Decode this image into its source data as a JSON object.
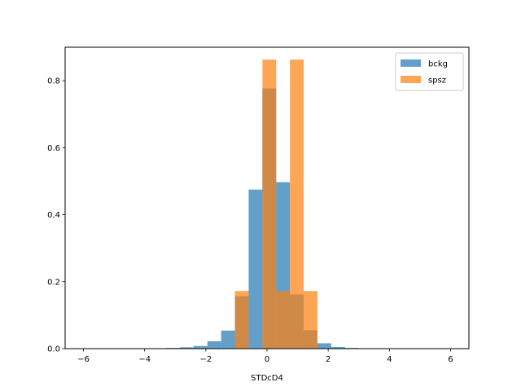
{
  "chart_data": {
    "type": "histogram",
    "title": "",
    "xlabel": "STDcD4",
    "ylabel": "",
    "xlim": [
      -6.6,
      6.6
    ],
    "ylim": [
      0,
      0.9
    ],
    "xticks": [
      -6,
      -4,
      -2,
      0,
      2,
      4,
      6
    ],
    "yticks": [
      0.0,
      0.2,
      0.4,
      0.6,
      0.8
    ],
    "grid": false,
    "legend_position": "top-right",
    "bins": [
      [
        -3.3,
        -2.85
      ],
      [
        -2.85,
        -2.4
      ],
      [
        -2.4,
        -1.95
      ],
      [
        -1.95,
        -1.5
      ],
      [
        -1.5,
        -1.05
      ],
      [
        -1.05,
        -0.6
      ],
      [
        -0.6,
        -0.15
      ],
      [
        -0.15,
        0.3
      ],
      [
        0.3,
        0.75
      ],
      [
        0.75,
        1.2
      ],
      [
        1.2,
        1.65
      ],
      [
        1.65,
        2.1
      ],
      [
        2.1,
        2.55
      ],
      [
        2.55,
        3.0
      ]
    ],
    "series": [
      {
        "name": "bckg",
        "color": "#1f77b4",
        "alpha": 0.7,
        "values": [
          0.002,
          0.004,
          0.008,
          0.022,
          0.054,
          0.157,
          0.475,
          0.777,
          0.497,
          0.162,
          0.055,
          0.016,
          0.005,
          0.002
        ]
      },
      {
        "name": "spsz",
        "color": "#ff7f0e",
        "alpha": 0.7,
        "values": [
          0,
          0,
          0,
          0,
          0,
          0.172,
          0,
          0.863,
          0.172,
          0.863,
          0.172,
          0,
          0,
          0
        ]
      }
    ]
  }
}
